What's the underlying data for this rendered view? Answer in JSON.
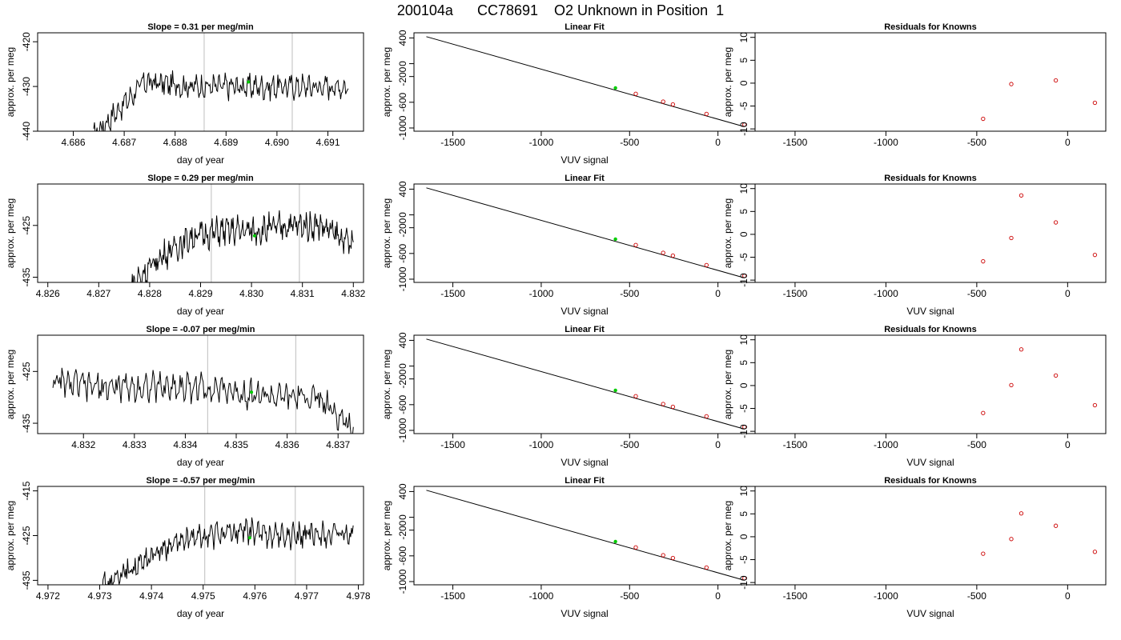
{
  "figure_title": "200104a      CC78691    O2 Unknown in Position  1",
  "colors": {
    "trace": "#000000",
    "guide_line": "#c8c8c8",
    "unknown_marker": "#00cc00",
    "known_marker": "#cc0000"
  },
  "chart_data": [
    {
      "type": "line",
      "title": "Slope =  0.31  per meg/min",
      "xlabel": "day of year",
      "ylabel": "approx. per meg",
      "xlim": [
        4.6853,
        4.6917
      ],
      "ylim": [
        -440,
        -418
      ],
      "xticks": [
        "4.686",
        "4.687",
        "4.688",
        "4.689",
        "4.690",
        "4.691"
      ],
      "yticks": [
        "-440",
        "-430",
        "-420"
      ],
      "x_start": 4.6864,
      "x_end": 4.6914,
      "y_levels": [
        -441,
        -429,
        -430,
        -430,
        -430,
        -430
      ],
      "vlines": [
        4.68857,
        4.6903
      ],
      "unknown_point": {
        "x": 4.68944,
        "y": -429
      }
    },
    {
      "type": "scatter",
      "title": "Linear Fit",
      "xlabel": "VUV signal",
      "ylabel": "approx. per meg",
      "xlim": [
        -1720,
        210
      ],
      "ylim": [
        -1050,
        480
      ],
      "xticks": [
        "-1500",
        "-1000",
        "-500",
        "0"
      ],
      "yticks": [
        "-1000",
        "-600",
        "-200",
        "0",
        "400"
      ],
      "fit_line": {
        "x": [
          -1650,
          150
        ],
        "y": [
          420,
          -980
        ]
      },
      "known_points": {
        "x": [
          -465,
          -310,
          -255,
          -65,
          150
        ],
        "y": [
          -469,
          -590,
          -633,
          -781,
          -948
        ]
      },
      "unknown_point": {
        "x": -580,
        "y": -378
      }
    },
    {
      "type": "scatter",
      "title": "Residuals for Knowns",
      "xlabel": "",
      "ylabel": "approx. per meg",
      "xlim": [
        -1720,
        210
      ],
      "ylim": [
        -10.5,
        11
      ],
      "xticks": [
        "-1500",
        "-1000",
        "-500",
        "0"
      ],
      "yticks": [
        "-10",
        "-5",
        "0",
        "5",
        "10"
      ],
      "known_points": {
        "x": [
          -465,
          -310,
          -65,
          150
        ],
        "y": [
          -7.8,
          -0.2,
          0.6,
          -4.3
        ]
      }
    },
    {
      "type": "line",
      "title": "Slope =  0.29  per meg/min",
      "xlabel": "day of year",
      "ylabel": "approx. per meg",
      "xlim": [
        4.8258,
        4.8322
      ],
      "ylim": [
        -436,
        -417
      ],
      "xticks": [
        "4.826",
        "4.827",
        "4.828",
        "4.829",
        "4.830",
        "4.831",
        "4.832"
      ],
      "yticks": [
        "-435",
        "-425"
      ],
      "x_start": 4.8276,
      "x_end": 4.832,
      "y_levels": [
        -437,
        -431,
        -427,
        -426,
        -426,
        -425,
        -425,
        -429
      ],
      "vlines": [
        4.82921,
        4.83094
      ],
      "unknown_point": {
        "x": 4.83006,
        "y": -427
      }
    },
    {
      "type": "scatter",
      "title": "Linear Fit",
      "xlabel": "VUV signal",
      "ylabel": "approx. per meg",
      "xlim": [
        -1720,
        210
      ],
      "ylim": [
        -1050,
        480
      ],
      "xticks": [
        "-1500",
        "-1000",
        "-500",
        "0"
      ],
      "yticks": [
        "-1000",
        "-600",
        "-200",
        "0",
        "400"
      ],
      "fit_line": {
        "x": [
          -1650,
          150
        ],
        "y": [
          420,
          -980
        ]
      },
      "known_points": {
        "x": [
          -465,
          -310,
          -255,
          -65,
          150
        ],
        "y": [
          -469,
          -590,
          -633,
          -781,
          -948
        ]
      },
      "unknown_point": {
        "x": -580,
        "y": -378
      }
    },
    {
      "type": "scatter",
      "title": "Residuals for Knowns",
      "xlabel": "VUV signal",
      "ylabel": "approx. per meg",
      "xlim": [
        -1720,
        210
      ],
      "ylim": [
        -10.5,
        11
      ],
      "xticks": [
        "-1500",
        "-1000",
        "-500",
        "0"
      ],
      "yticks": [
        "-10",
        "-5",
        "0",
        "5",
        "10"
      ],
      "known_points": {
        "x": [
          -465,
          -310,
          -255,
          -65,
          150
        ],
        "y": [
          -5.9,
          -0.8,
          8.5,
          2.6,
          -4.5
        ]
      }
    },
    {
      "type": "line",
      "title": "Slope =  -0.07  per meg/min",
      "xlabel": "day of year",
      "ylabel": "approx. per meg",
      "xlim": [
        4.8311,
        4.8375
      ],
      "ylim": [
        -437,
        -418
      ],
      "xticks": [
        "4.832",
        "4.833",
        "4.834",
        "4.835",
        "4.836",
        "4.837"
      ],
      "yticks": [
        "-435",
        "-425"
      ],
      "x_start": 4.8314,
      "x_end": 4.8373,
      "y_levels": [
        -427,
        -428,
        -428,
        -428,
        -428,
        -429,
        -430,
        -430,
        -436
      ],
      "vlines": [
        4.83444,
        4.83617
      ],
      "unknown_point": {
        "x": 4.8353,
        "y": -429
      }
    },
    {
      "type": "scatter",
      "title": "Linear Fit",
      "xlabel": "VUV signal",
      "ylabel": "approx. per meg",
      "xlim": [
        -1720,
        210
      ],
      "ylim": [
        -1050,
        480
      ],
      "xticks": [
        "-1500",
        "-1000",
        "-500",
        "0"
      ],
      "yticks": [
        "-1000",
        "-600",
        "-200",
        "0",
        "400"
      ],
      "fit_line": {
        "x": [
          -1650,
          150
        ],
        "y": [
          420,
          -980
        ]
      },
      "known_points": {
        "x": [
          -465,
          -310,
          -255,
          -65,
          150
        ],
        "y": [
          -469,
          -590,
          -633,
          -781,
          -948
        ]
      },
      "unknown_point": {
        "x": -580,
        "y": -378
      }
    },
    {
      "type": "scatter",
      "title": "Residuals for Knowns",
      "xlabel": "VUV signal",
      "ylabel": "approx. per meg",
      "xlim": [
        -1720,
        210
      ],
      "ylim": [
        -10.5,
        11
      ],
      "xticks": [
        "-1500",
        "-1000",
        "-500",
        "0"
      ],
      "yticks": [
        "-10",
        "-5",
        "0",
        "5",
        "10"
      ],
      "known_points": {
        "x": [
          -465,
          -310,
          -255,
          -65,
          150
        ],
        "y": [
          -6.0,
          0.1,
          7.9,
          2.2,
          -4.3
        ]
      }
    },
    {
      "type": "line",
      "title": "Slope =  -0.57  per meg/min",
      "xlabel": "day of year",
      "ylabel": "approx. per meg",
      "xlim": [
        4.9718,
        4.9781
      ],
      "ylim": [
        -436,
        -414
      ],
      "xticks": [
        "4.972",
        "4.973",
        "4.974",
        "4.975",
        "4.976",
        "4.977",
        "4.978"
      ],
      "yticks": [
        "-435",
        "-425",
        "-415"
      ],
      "x_start": 4.973,
      "x_end": 4.9779,
      "y_levels": [
        -437,
        -432,
        -427,
        -425,
        -424,
        -425,
        -425,
        -425
      ],
      "vlines": [
        4.97503,
        4.97678
      ],
      "unknown_point": {
        "x": 4.9759,
        "y": -425.5
      }
    },
    {
      "type": "scatter",
      "title": "Linear Fit",
      "xlabel": "VUV signal",
      "ylabel": "approx. per meg",
      "xlim": [
        -1720,
        210
      ],
      "ylim": [
        -1050,
        480
      ],
      "xticks": [
        "-1500",
        "-1000",
        "-500",
        "0"
      ],
      "yticks": [
        "-1000",
        "-600",
        "-200",
        "0",
        "400"
      ],
      "fit_line": {
        "x": [
          -1650,
          150
        ],
        "y": [
          420,
          -980
        ]
      },
      "known_points": {
        "x": [
          -465,
          -310,
          -255,
          -65,
          150
        ],
        "y": [
          -469,
          -590,
          -633,
          -781,
          -948
        ]
      },
      "unknown_point": {
        "x": -580,
        "y": -378
      }
    },
    {
      "type": "scatter",
      "title": "Residuals for Knowns",
      "xlabel": "VUV signal",
      "ylabel": "approx. per meg",
      "xlim": [
        -1720,
        210
      ],
      "ylim": [
        -10.5,
        11
      ],
      "xticks": [
        "-1500",
        "-1000",
        "-500",
        "0"
      ],
      "yticks": [
        "-10",
        "-5",
        "0",
        "5",
        "10"
      ],
      "known_points": {
        "x": [
          -465,
          -310,
          -255,
          -65,
          150
        ],
        "y": [
          -3.7,
          -0.5,
          5.1,
          2.4,
          -3.3
        ]
      }
    }
  ]
}
